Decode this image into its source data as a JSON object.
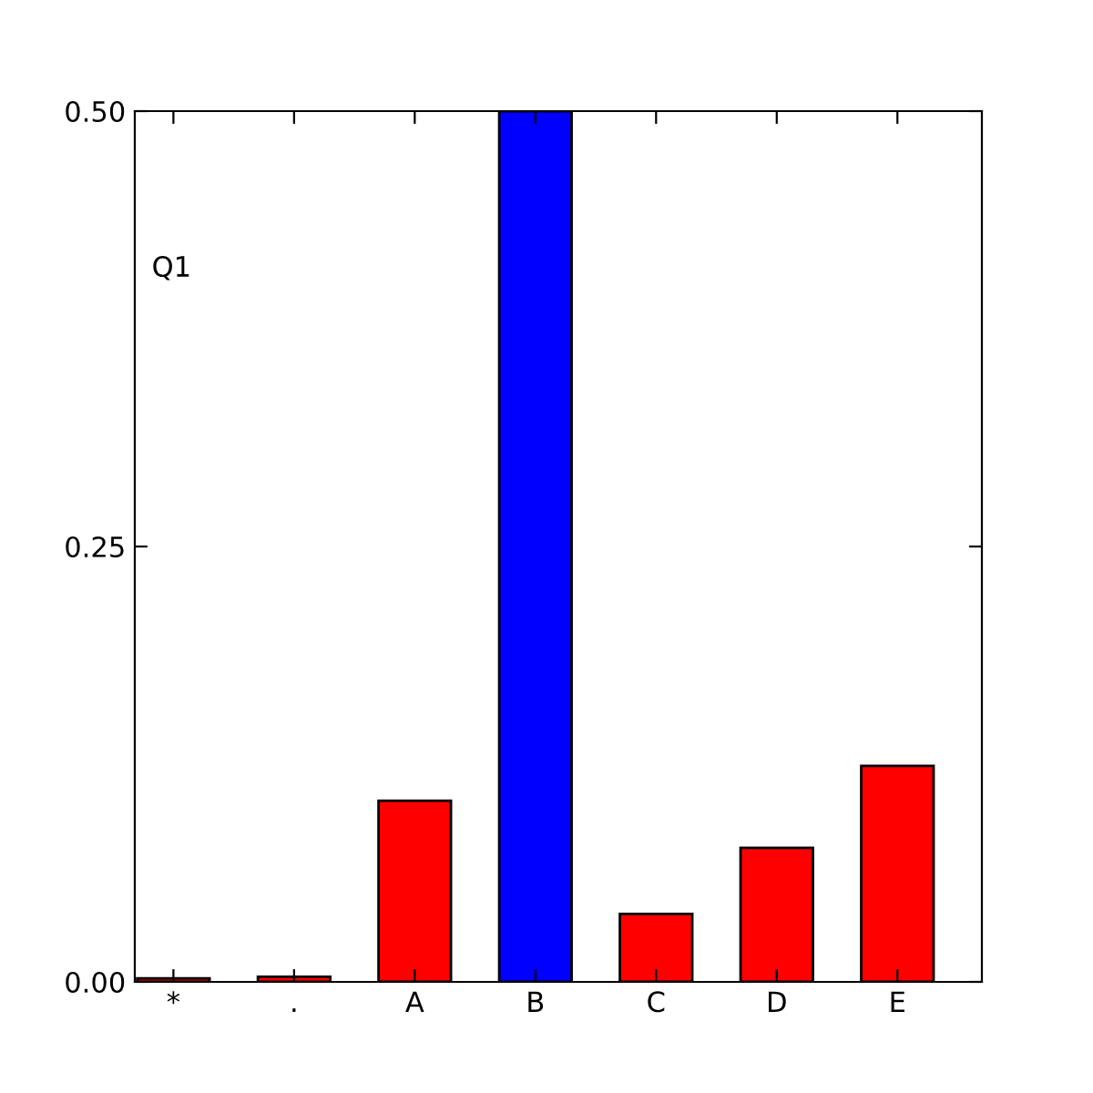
{
  "chart_data": {
    "type": "bar",
    "categories": [
      "*",
      ".",
      "A",
      "B",
      "C",
      "D",
      "E"
    ],
    "values": [
      0.002,
      0.003,
      0.104,
      0.5,
      0.039,
      0.077,
      0.124
    ],
    "colors": [
      "#ff0000",
      "#ff0000",
      "#ff0000",
      "#0000ff",
      "#ff0000",
      "#ff0000",
      "#ff0000"
    ],
    "ylim": [
      0,
      0.5
    ],
    "yticks": [
      {
        "value": 0,
        "label": "0.00"
      },
      {
        "value": 0.25,
        "label": "0.25"
      },
      {
        "value": 0.5,
        "label": "0.50"
      }
    ],
    "annotations": [
      "Q1"
    ],
    "grid": false,
    "legend": false
  }
}
